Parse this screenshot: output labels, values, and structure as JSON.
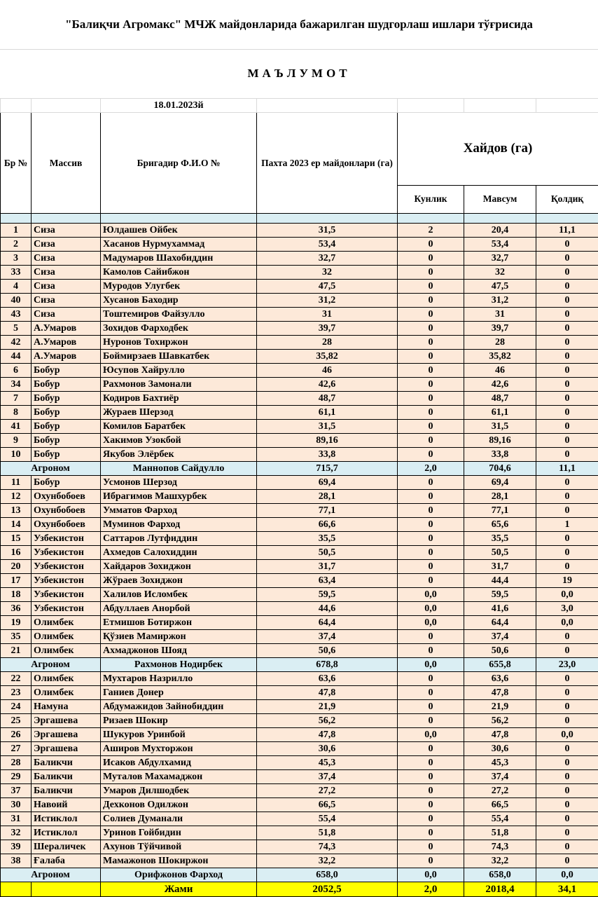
{
  "title": "\"Балиқчи Агромакс\" МЧЖ  майдонларида бажарилган шудгорлаш ишлари  тўғрисида",
  "subtitle": "МАЪЛУМОТ",
  "date": "18.01.2023й",
  "headers": {
    "br_no": "Бр №",
    "massiv": "Массив",
    "brigadir": "Бригадир Ф.И.О №",
    "pakhta": "Пахта 2023 ер майдонлари (га)",
    "haydov": "Хайдов (га)",
    "kunlik": "Кунлик",
    "mavsum": "Мавсум",
    "qoldiq": "Қолдиқ"
  },
  "groups": [
    {
      "rows": [
        [
          "1",
          "Сиза",
          "Юлдашев Ойбек",
          "31,5",
          "2",
          "20,4",
          "11,1"
        ],
        [
          "2",
          "Сиза",
          "Хасанов Нурмухаммад",
          "53,4",
          "0",
          "53,4",
          "0"
        ],
        [
          "3",
          "Сиза",
          "Мадумаров Шахобиддин",
          "32,7",
          "0",
          "32,7",
          "0"
        ],
        [
          "33",
          "Сиза",
          "Камолов Сайибжон",
          "32",
          "0",
          "32",
          "0"
        ],
        [
          "4",
          "Сиза",
          "Муродов Улугбек",
          "47,5",
          "0",
          "47,5",
          "0"
        ],
        [
          "40",
          "Сиза",
          "Хусанов Баходир",
          "31,2",
          "0",
          "31,2",
          "0"
        ],
        [
          "43",
          "Сиза",
          "Тоштемиров Файзулло",
          "31",
          "0",
          "31",
          "0"
        ],
        [
          "5",
          "А.Умаров",
          "Зохидов Фарходбек",
          "39,7",
          "0",
          "39,7",
          "0"
        ],
        [
          "42",
          "А.Умаров",
          "Нуронов Тохиржон",
          "28",
          "0",
          "28",
          "0"
        ],
        [
          "44",
          "А.Умаров",
          "Боймирзаев Шавкатбек",
          "35,82",
          "0",
          "35,82",
          "0"
        ],
        [
          "6",
          "Бобур",
          "Юсупов Хайрулло",
          "46",
          "0",
          "46",
          "0"
        ],
        [
          "34",
          "Бобур",
          "Рахмонов Замонали",
          "42,6",
          "0",
          "42,6",
          "0"
        ],
        [
          "7",
          "Бобур",
          "Кодиров Бахтиёр",
          "48,7",
          "0",
          "48,7",
          "0"
        ],
        [
          "8",
          "Бобур",
          "Жураев Шерзод",
          "61,1",
          "0",
          "61,1",
          "0"
        ],
        [
          "41",
          "Бобур",
          "Комилов Баратбек",
          "31,5",
          "0",
          "31,5",
          "0"
        ],
        [
          "9",
          "Бобур",
          "Хакимов Узокбой",
          "89,16",
          "0",
          "89,16",
          "0"
        ],
        [
          "10",
          "Бобур",
          "Якубов Элёрбек",
          "33,8",
          "0",
          "33,8",
          "0"
        ]
      ],
      "subtotal": [
        "Агроном",
        "Маннопов Сайдулло",
        "715,7",
        "2,0",
        "704,6",
        "11,1"
      ]
    },
    {
      "rows": [
        [
          "11",
          "Бобур",
          "Усмонов Шерзод",
          "69,4",
          "0",
          "69,4",
          "0"
        ],
        [
          "12",
          "Охунбобоев",
          "Ибрагимов Машхурбек",
          "28,1",
          "0",
          "28,1",
          "0"
        ],
        [
          "13",
          "Охунбобоев",
          "Умматов Фарход",
          "77,1",
          "0",
          "77,1",
          "0"
        ],
        [
          "14",
          "Охунбобоев",
          "Муминов Фарход",
          "66,6",
          "0",
          "65,6",
          "1"
        ],
        [
          "15",
          "Узбекистон",
          "Саттаров Лутфиддин",
          "35,5",
          "0",
          "35,5",
          "0"
        ],
        [
          "16",
          "Узбекистон",
          "Ахмедов Салохиддин",
          "50,5",
          "0",
          "50,5",
          "0"
        ],
        [
          "20",
          "Узбекистон",
          "Хайдаров Зохиджон",
          "31,7",
          "0",
          "31,7",
          "0"
        ],
        [
          "17",
          "Узбекистон",
          "Жўраев Зохиджон",
          "63,4",
          "0",
          "44,4",
          "19"
        ],
        [
          "18",
          "Узбекистон",
          "Халилов Исломбек",
          "59,5",
          "0,0",
          "59,5",
          "0,0"
        ],
        [
          "36",
          "Узбекистон",
          "Абдуллаев Анорбой",
          "44,6",
          "0,0",
          "41,6",
          "3,0"
        ],
        [
          "19",
          "Олимбек",
          "Етмишов Ботиржон",
          "64,4",
          "0,0",
          "64,4",
          "0,0"
        ],
        [
          "35",
          "Олимбек",
          "Қўзиев Мамиржон",
          "37,4",
          "0",
          "37,4",
          "0"
        ],
        [
          "21",
          "Олимбек",
          "Ахмаджонов Шояд",
          "50,6",
          "0",
          "50,6",
          "0"
        ]
      ],
      "subtotal": [
        "Агроном",
        "Рахмонов Нодирбек",
        "678,8",
        "0,0",
        "655,8",
        "23,0"
      ]
    },
    {
      "rows": [
        [
          "22",
          "Олимбек",
          "Мухтаров Назрилло",
          "63,6",
          "0",
          "63,6",
          "0"
        ],
        [
          "23",
          "Олимбек",
          "Ганиев Донер",
          "47,8",
          "0",
          "47,8",
          "0"
        ],
        [
          "24",
          "Намуна",
          "Абдумажидов Зайнобиддин",
          "21,9",
          "0",
          "21,9",
          "0"
        ],
        [
          "25",
          "Эргашева",
          "Ризаев Шокир",
          "56,2",
          "0",
          "56,2",
          "0"
        ],
        [
          "26",
          "Эргашева",
          "Шукуров Уринбой",
          "47,8",
          "0,0",
          "47,8",
          "0,0"
        ],
        [
          "27",
          "Эргашева",
          "Аширов Мухторжон",
          "30,6",
          "0",
          "30,6",
          "0"
        ],
        [
          "28",
          "Баликчи",
          "Исаков Абдулхамид",
          "45,3",
          "0",
          "45,3",
          "0"
        ],
        [
          "29",
          "Баликчи",
          "Муталов Махамаджон",
          "37,4",
          "0",
          "37,4",
          "0"
        ],
        [
          "37",
          "Баликчи",
          "Умаров Дилшодбек",
          "27,2",
          "0",
          "27,2",
          "0"
        ],
        [
          "30",
          "Навоий",
          "Дехконов Одилжон",
          "66,5",
          "0",
          "66,5",
          "0"
        ],
        [
          "31",
          "Истиклол",
          "Солиев Думанали",
          "55,4",
          "0",
          "55,4",
          "0"
        ],
        [
          "32",
          "Истиклол",
          "Уринов Гойбидин",
          "51,8",
          "0",
          "51,8",
          "0"
        ],
        [
          "39",
          "Шераличек",
          "Ахунов Тўйчивой",
          "74,3",
          "0",
          "74,3",
          "0"
        ],
        [
          "38",
          "Ғалаба",
          "Мамажонов Шокиржон",
          "32,2",
          "0",
          "32,2",
          "0"
        ]
      ],
      "subtotal": [
        "Агроном",
        "Орифжонов Фарход",
        "658,0",
        "0,0",
        "658,0",
        "0,0"
      ]
    }
  ],
  "total": [
    "Жами",
    "2052,5",
    "2,0",
    "2018,4",
    "34,1"
  ],
  "colors": {
    "row_bg": "#fde9d9",
    "subtotal_bg": "#daeef3",
    "total_bg": "#ffff00"
  }
}
